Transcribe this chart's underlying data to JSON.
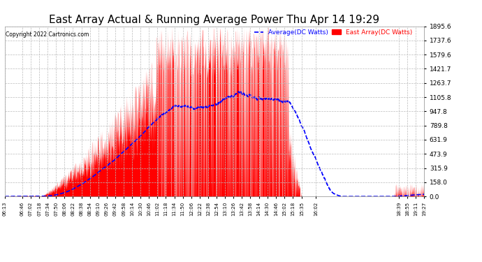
{
  "title": "East Array Actual & Running Average Power Thu Apr 14 19:29",
  "copyright": "Copyright 2022 Cartronics.com",
  "legend_avg": "Average(DC Watts)",
  "legend_east": "East Array(DC Watts)",
  "yticks": [
    0.0,
    158.0,
    315.9,
    473.9,
    631.9,
    789.8,
    947.8,
    1105.8,
    1263.7,
    1421.7,
    1579.6,
    1737.6,
    1895.6
  ],
  "ymax": 1895.6,
  "ymin": 0.0,
  "background_color": "#ffffff",
  "plot_bg_color": "#ffffff",
  "grid_color": "#bbbbbb",
  "fill_color": "#ff0000",
  "avg_line_color": "#0000ff",
  "title_fontsize": 11,
  "xtick_labels": [
    "06:13",
    "06:46",
    "07:02",
    "07:18",
    "07:34",
    "07:50",
    "08:06",
    "08:22",
    "08:38",
    "08:54",
    "09:10",
    "09:26",
    "09:42",
    "09:58",
    "10:14",
    "10:30",
    "10:46",
    "11:02",
    "11:18",
    "11:34",
    "11:50",
    "12:06",
    "12:22",
    "12:38",
    "12:54",
    "13:10",
    "13:26",
    "13:42",
    "13:58",
    "14:14",
    "14:30",
    "14:46",
    "15:02",
    "15:18",
    "15:35",
    "16:02",
    "18:39",
    "18:55",
    "19:11",
    "19:27"
  ]
}
